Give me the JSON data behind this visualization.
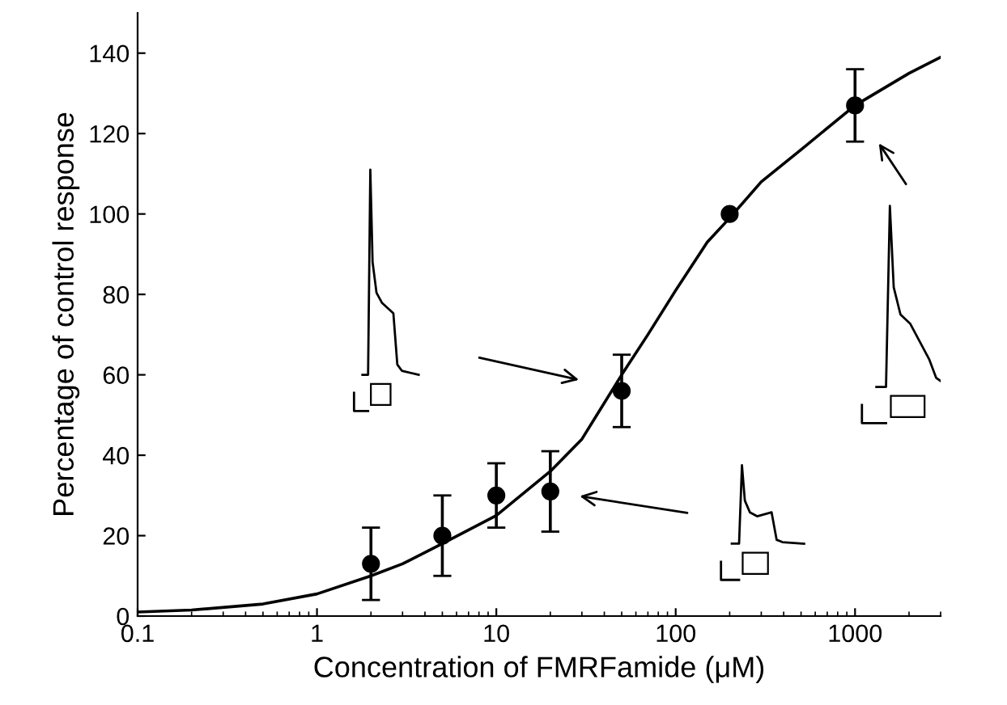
{
  "chart_data": {
    "type": "scatter",
    "xlabel": "Concentration of FMRFamide (μM)",
    "ylabel": "Percentage of control response",
    "log": "x",
    "xlim": [
      0.1,
      3000
    ],
    "ylim": [
      0,
      150
    ],
    "xticks": [
      {
        "value": 0.1,
        "label": "0.1"
      },
      1,
      10,
      100,
      1000
    ],
    "yticks": [
      0,
      20,
      40,
      60,
      80,
      100,
      120,
      140
    ],
    "grid": false,
    "marker": "circle",
    "series": [
      {
        "color": "#000000",
        "x": [
          2,
          5,
          10,
          20,
          50,
          200,
          1000
        ],
        "values": [
          13,
          20,
          30,
          31,
          56,
          100,
          127
        ],
        "errors": [
          [
            4,
            22
          ],
          [
            10,
            30
          ],
          [
            22,
            38
          ],
          [
            21,
            41
          ],
          [
            47,
            65
          ],
          null,
          [
            118,
            136
          ]
        ]
      },
      {
        "type": "line",
        "color": "#000000",
        "marker": "none",
        "line_style": "solid",
        "x": [
          0.1,
          0.2,
          0.5,
          1,
          2,
          3,
          5,
          10,
          20,
          30,
          50,
          70,
          100,
          150,
          200,
          300,
          500,
          1000,
          2000,
          3000
        ],
        "values": [
          1,
          1.5,
          3,
          5.5,
          10,
          13,
          18,
          25,
          36,
          44,
          60,
          70,
          81,
          93,
          99,
          108,
          116,
          127,
          135,
          139
        ]
      }
    ]
  }
}
